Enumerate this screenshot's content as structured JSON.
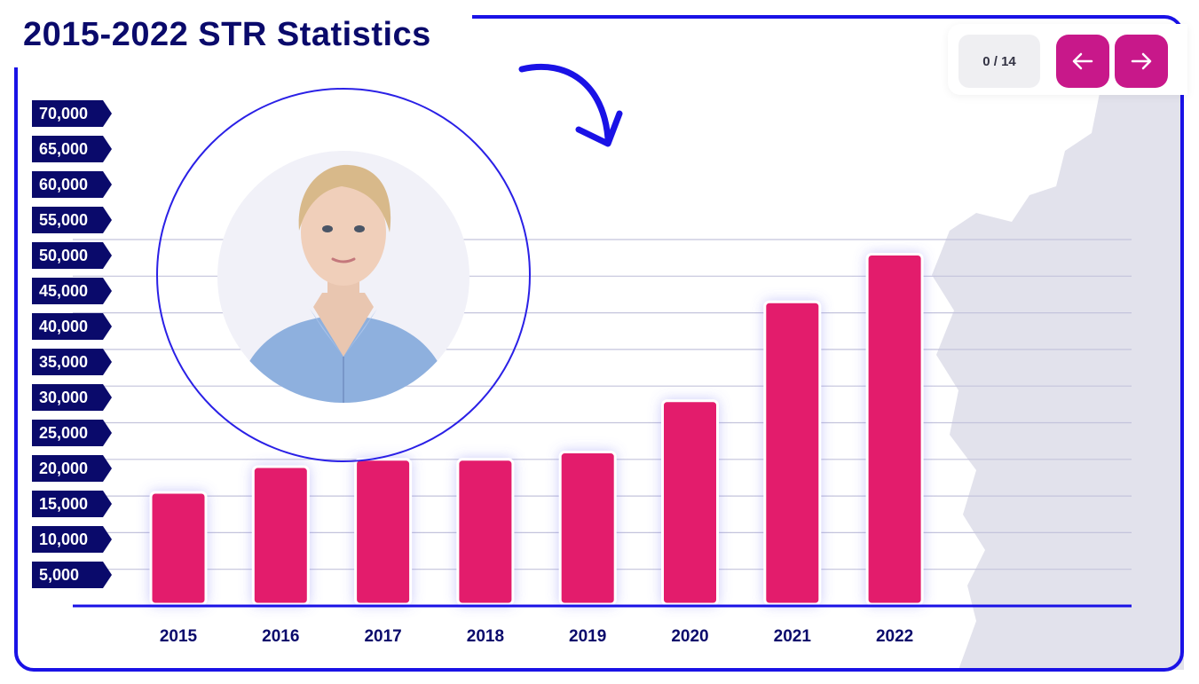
{
  "title": "2015-2022 STR Statistics",
  "navigation": {
    "counter": "0 / 14",
    "prev_icon": "arrow-left-icon",
    "next_icon": "arrow-right-icon"
  },
  "colors": {
    "bar": "#e31c6c",
    "axis": "#1a12e6",
    "label_bg": "#0a0a6b",
    "button": "#c8188a",
    "title": "#0a0a6b"
  },
  "chart_data": {
    "type": "bar",
    "title": "2015-2022 STR Statistics",
    "xlabel": "",
    "ylabel": "",
    "categories": [
      "2015",
      "2016",
      "2017",
      "2018",
      "2019",
      "2020",
      "2021",
      "2022"
    ],
    "values": [
      15500,
      19000,
      20000,
      20000,
      21000,
      28000,
      41500,
      48000
    ],
    "y_tick_labels": [
      "70,000",
      "65,000",
      "60,000",
      "55,000",
      "50,000",
      "45,000",
      "40,000",
      "35,000",
      "30,000",
      "25,000",
      "20,000",
      "15,000",
      "10,000",
      "5,000"
    ],
    "ylim": [
      0,
      70000
    ],
    "grid": true,
    "legend": "none"
  }
}
